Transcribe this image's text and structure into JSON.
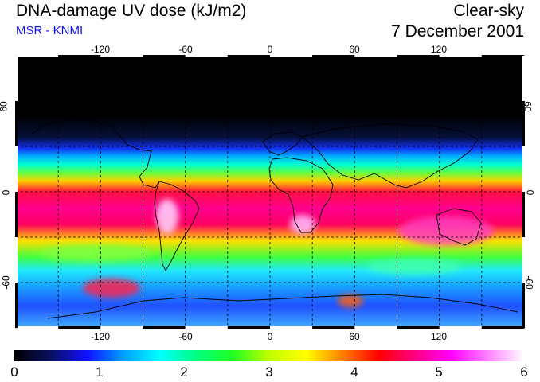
{
  "header": {
    "title": "DNA-damage UV dose (kJ/m2)",
    "source": "MSR - KNMI",
    "condition": "Clear-sky",
    "date": "7 December 2001"
  },
  "axes": {
    "longitude_top": [
      "-120",
      "-60",
      "0",
      "60",
      "120"
    ],
    "longitude_bottom": [
      "-120",
      "-60",
      "0",
      "60",
      "120"
    ],
    "latitude_left": [
      "60",
      "0",
      "-60"
    ],
    "latitude_right": [
      "60",
      "0",
      "-60"
    ]
  },
  "colorbar": {
    "labels": [
      "0",
      "1",
      "2",
      "3",
      "4",
      "5",
      "6"
    ],
    "min": 0,
    "max": 6,
    "stops": [
      "#000000",
      "#0a1060",
      "#1010ff",
      "#00a0ff",
      "#00ffff",
      "#00ff80",
      "#20ff20",
      "#c0ff00",
      "#ffff00",
      "#ff8000",
      "#ff0000",
      "#ff0080",
      "#ff00ff",
      "#ff80ff",
      "#ffffff"
    ]
  },
  "map": {
    "lon_range": [
      -180,
      180
    ],
    "lat_range": [
      -90,
      90
    ],
    "grid_step_deg": 30
  }
}
